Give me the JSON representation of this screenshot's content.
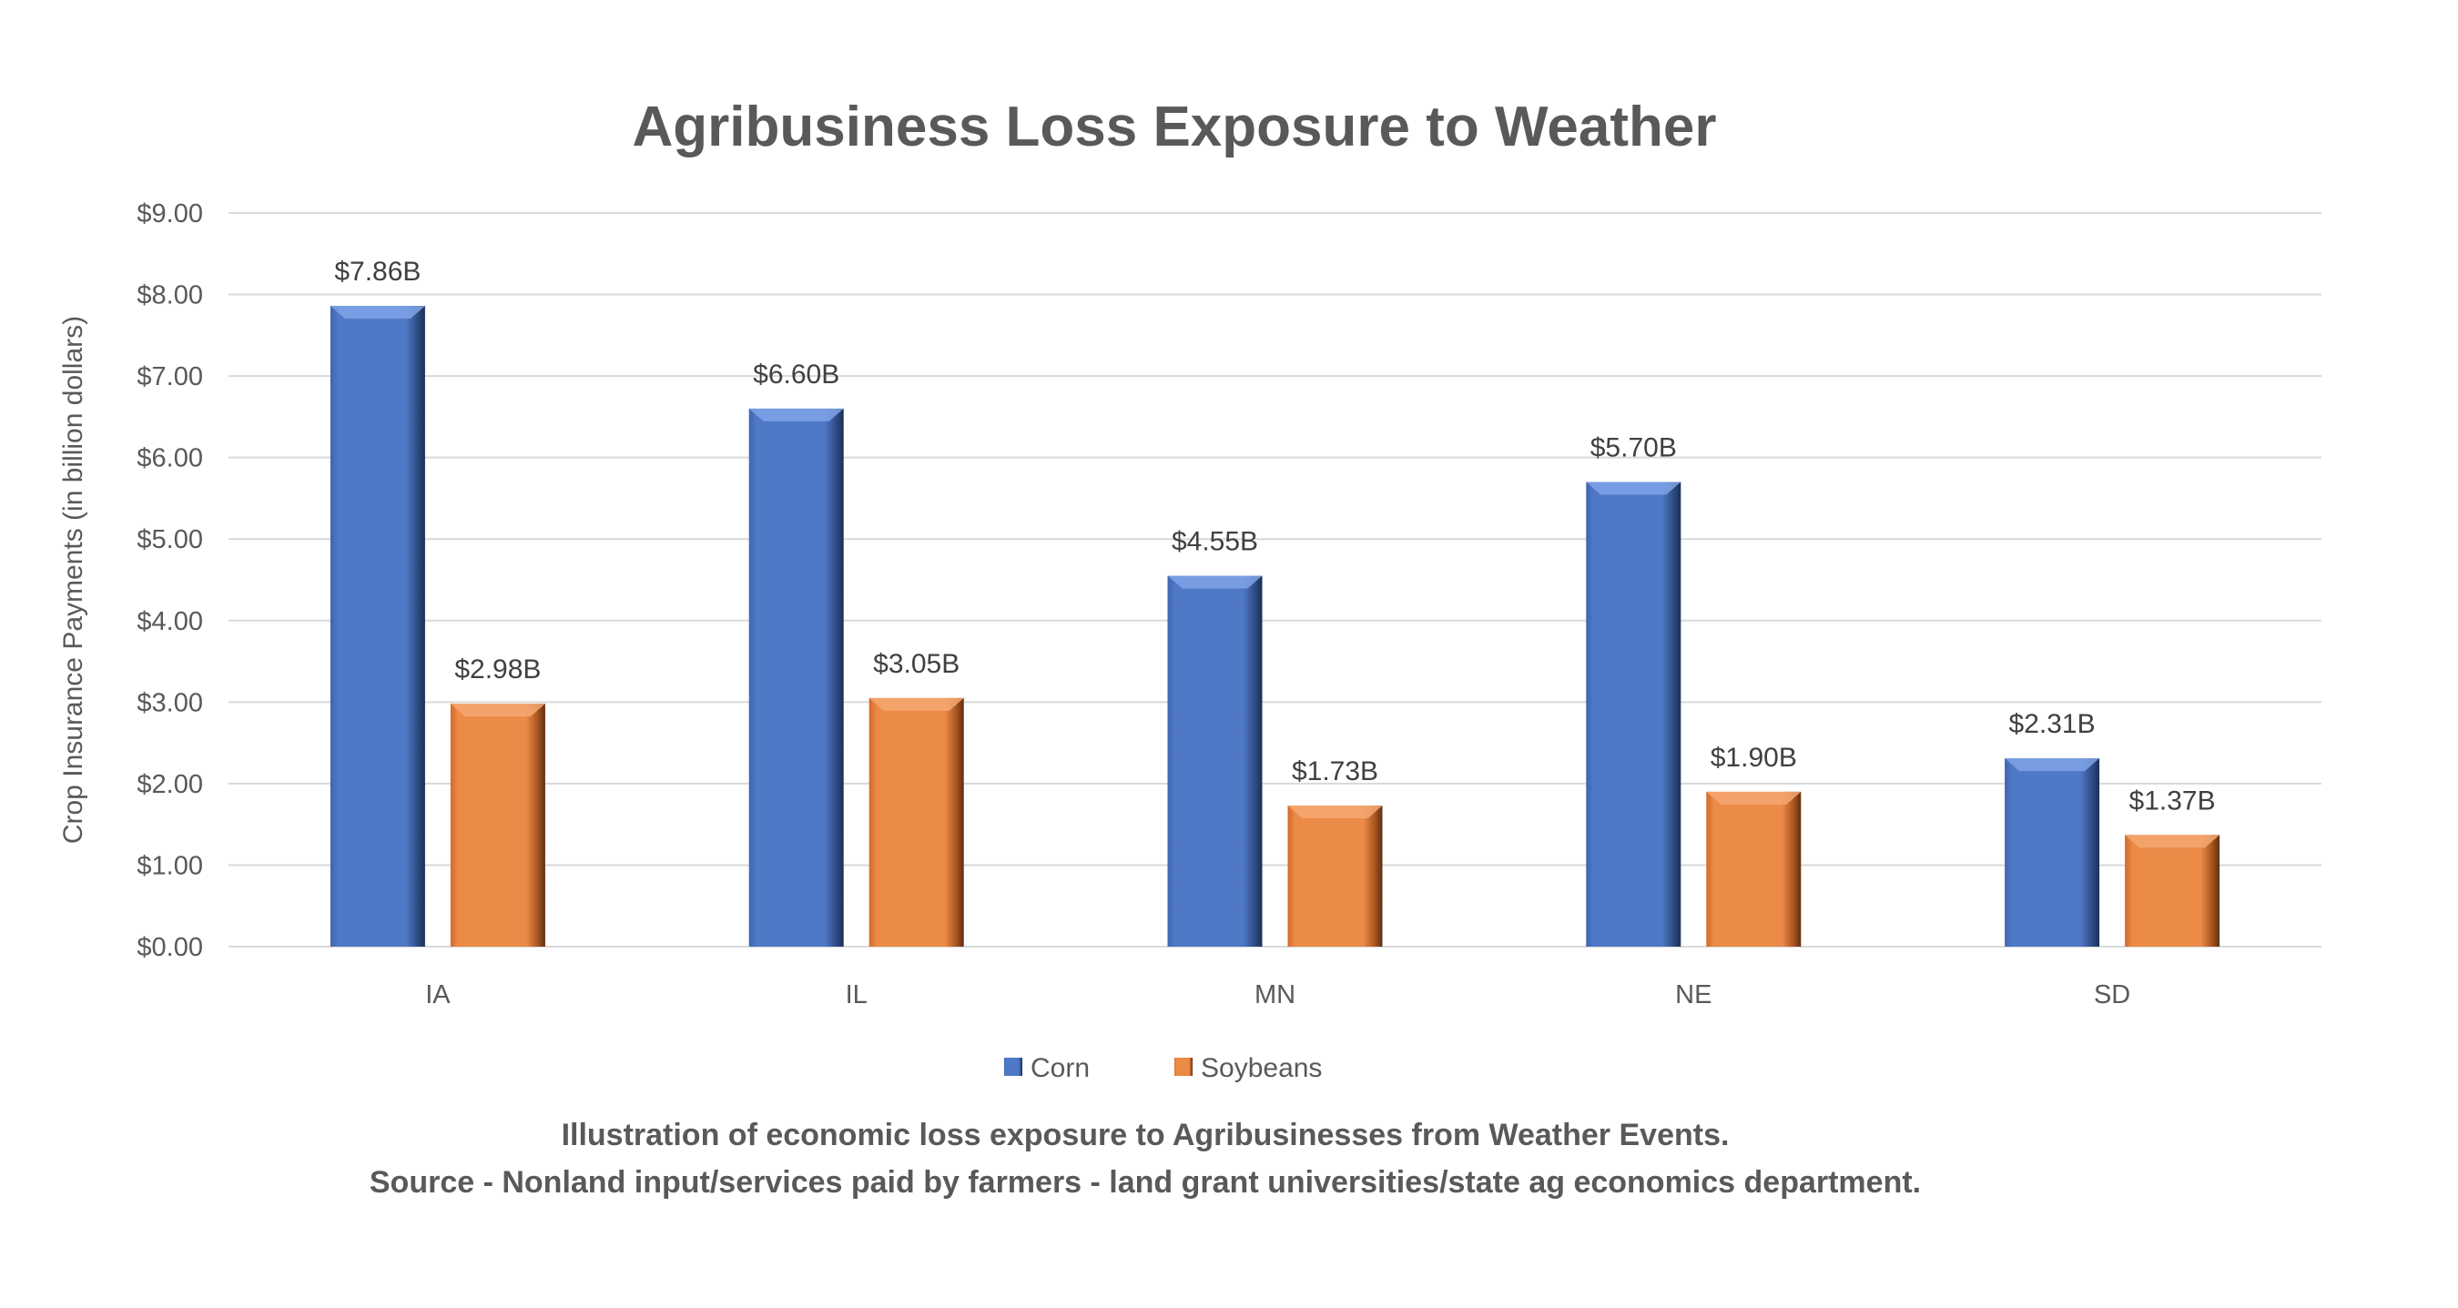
{
  "chart_data": {
    "type": "bar",
    "title": "Agribusiness Loss Exposure to Weather",
    "xlabel": "",
    "ylabel": "Crop Insurance Payments (in billion dollars)",
    "ylim": [
      0,
      9
    ],
    "yticks": [
      0,
      1,
      2,
      3,
      4,
      5,
      6,
      7,
      8,
      9
    ],
    "ytick_labels": [
      "$0.00",
      "$1.00",
      "$2.00",
      "$3.00",
      "$4.00",
      "$5.00",
      "$6.00",
      "$7.00",
      "$8.00",
      "$9.00"
    ],
    "grid": true,
    "legend_position": "bottom",
    "categories": [
      "IA",
      "IL",
      "MN",
      "NE",
      "SD"
    ],
    "series": [
      {
        "name": "Corn",
        "color": "#4472C4",
        "values": [
          7.86,
          6.6,
          4.55,
          5.7,
          2.31
        ],
        "labels": [
          "$7.86B",
          "$6.60B",
          "$4.55B",
          "$5.70B",
          "$2.31B"
        ]
      },
      {
        "name": "Soybeans",
        "color": "#ED7D31",
        "values": [
          2.98,
          3.05,
          1.73,
          1.9,
          1.37
        ],
        "labels": [
          "$2.98B",
          "$3.05B",
          "$1.73B",
          "$1.90B",
          "$1.37B"
        ]
      }
    ],
    "caption": [
      "Illustration of economic loss exposure to Agribusinesses from Weather Events.",
      "Source - Nonland input/services paid by farmers - land grant universities/state ag economics department."
    ]
  }
}
